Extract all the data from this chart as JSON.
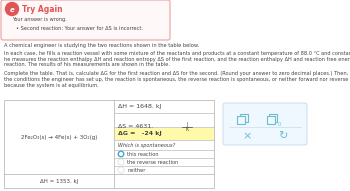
{
  "title": "Try Again",
  "error_box_text": "Your answer is wrong.",
  "bullet_text": "Second reaction: Your answer for ΔS is incorrect.",
  "body_text_1": "A chemical engineer is studying the two reactions shown in the table below.",
  "body_text_2a": "In each case, he fills a reaction vessel with some mixture of the reactants and products at a constant temperature of 88.0 °C and constant total pressure. Then,",
  "body_text_2b": "he measures the reaction enthalpy ΔH and reaction entropy ΔS of the first reaction, and the reaction enthalpy ΔH and reaction free energy ΔG of the second",
  "body_text_2c": "reaction. The results of his measurements are shown in the table.",
  "body_text_3a": "Complete the table. That is, calculate ΔG for the first reaction and ΔS for the second. (Round your answer to zero decimal places.) Then, decide whether, under",
  "body_text_3b": "the conditions the engineer has set up, the reaction is spontaneous, the reverse reaction is spontaneous, or neither forward nor reverse reaction is spontaneous",
  "body_text_3c": "because the system is at equilibrium.",
  "reaction_1": "2Fe₂O₃(s) → 4Fe(s) + 3O₂(g)",
  "dH_1": "ΔH = 1648. kJ",
  "dS_1_left": "ΔS = 4631.",
  "dS_1_J": "J",
  "dS_1_K": "K",
  "dG_1": "ΔG =   -24 kJ",
  "which_spontaneous_label": "Which is spontaneous?",
  "radio_this": "this reaction",
  "radio_reverse": "the reverse reaction",
  "radio_neither": "neither",
  "dH_2": "ΔH = 1353. kJ",
  "bg_color": "#ffffff",
  "error_bg": "#fff8f8",
  "error_border": "#e8a0a0",
  "error_icon_color": "#e05555",
  "table_border": "#bbbbbb",
  "radio_selected_color": "#4aabcc",
  "radio_unselected_color": "#dddddd",
  "dg_highlight": "#fffaaa",
  "panel_border": "#c8dde8",
  "panel_bg": "#f0f8ff",
  "icon_color": "#6bbccc",
  "text_color": "#444444",
  "small_text_size": 3.6,
  "body_text_size": 3.7,
  "table_text_size": 4.5,
  "reaction_text_size": 4.0
}
